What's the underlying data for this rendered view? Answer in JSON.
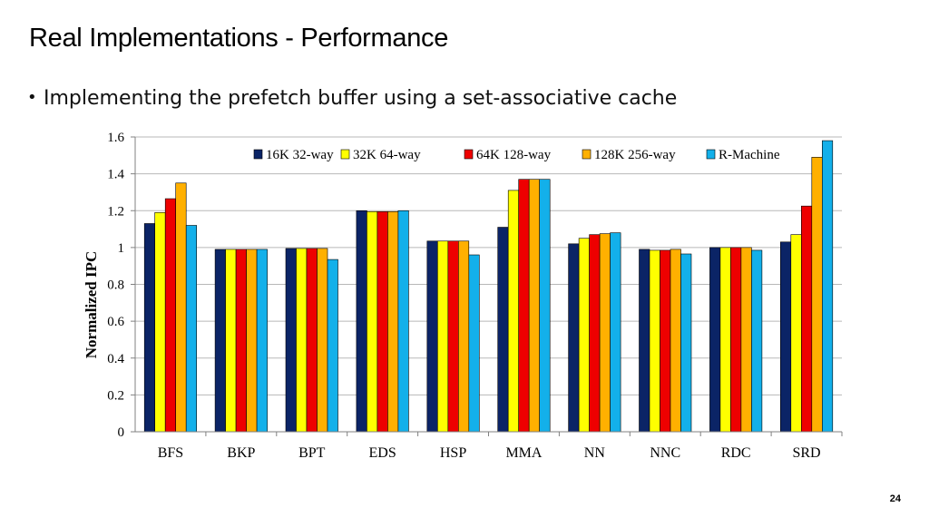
{
  "slide": {
    "title": "Real Implementations - Performance",
    "bullet": "Implementing the prefetch buffer using a set-associative cache",
    "bullet_marker": "•",
    "page_number": "24"
  },
  "chart_data": {
    "type": "bar",
    "title": "",
    "xlabel": "",
    "ylabel": "Normalized IPC",
    "ylim": [
      0,
      1.6
    ],
    "yticks": [
      0,
      0.2,
      0.4,
      0.6,
      0.8,
      1,
      1.2,
      1.4,
      1.6
    ],
    "ytick_labels": [
      "0",
      "0.2",
      "0.4",
      "0.6",
      "0.8",
      "1",
      "1.2",
      "1.4",
      "1.6"
    ],
    "grid": true,
    "legend_position": "top-right",
    "categories": [
      "BFS",
      "BKP",
      "BPT",
      "EDS",
      "HSP",
      "MMA",
      "NN",
      "NNC",
      "RDC",
      "SRD"
    ],
    "series": [
      {
        "name": "16K 32-way",
        "color": "#0b2466",
        "values": [
          1.13,
          0.99,
          0.995,
          1.2,
          1.035,
          1.11,
          1.02,
          0.99,
          1.0,
          1.03
        ]
      },
      {
        "name": "32K 64-way",
        "color": "#ffff00",
        "values": [
          1.19,
          0.99,
          0.995,
          1.195,
          1.035,
          1.31,
          1.05,
          0.985,
          1.0,
          1.07
        ]
      },
      {
        "name": "64K 128-way",
        "color": "#ee0000",
        "values": [
          1.265,
          0.99,
          0.995,
          1.195,
          1.035,
          1.37,
          1.07,
          0.985,
          1.0,
          1.225
        ]
      },
      {
        "name": "128K 256-way",
        "color": "#ffb000",
        "values": [
          1.35,
          0.99,
          0.995,
          1.195,
          1.035,
          1.37,
          1.075,
          0.99,
          1.0,
          1.49
        ]
      },
      {
        "name": "R-Machine",
        "color": "#13b0ea",
        "values": [
          1.12,
          0.99,
          0.935,
          1.2,
          0.96,
          1.37,
          1.08,
          0.965,
          0.985,
          1.58
        ]
      }
    ]
  }
}
